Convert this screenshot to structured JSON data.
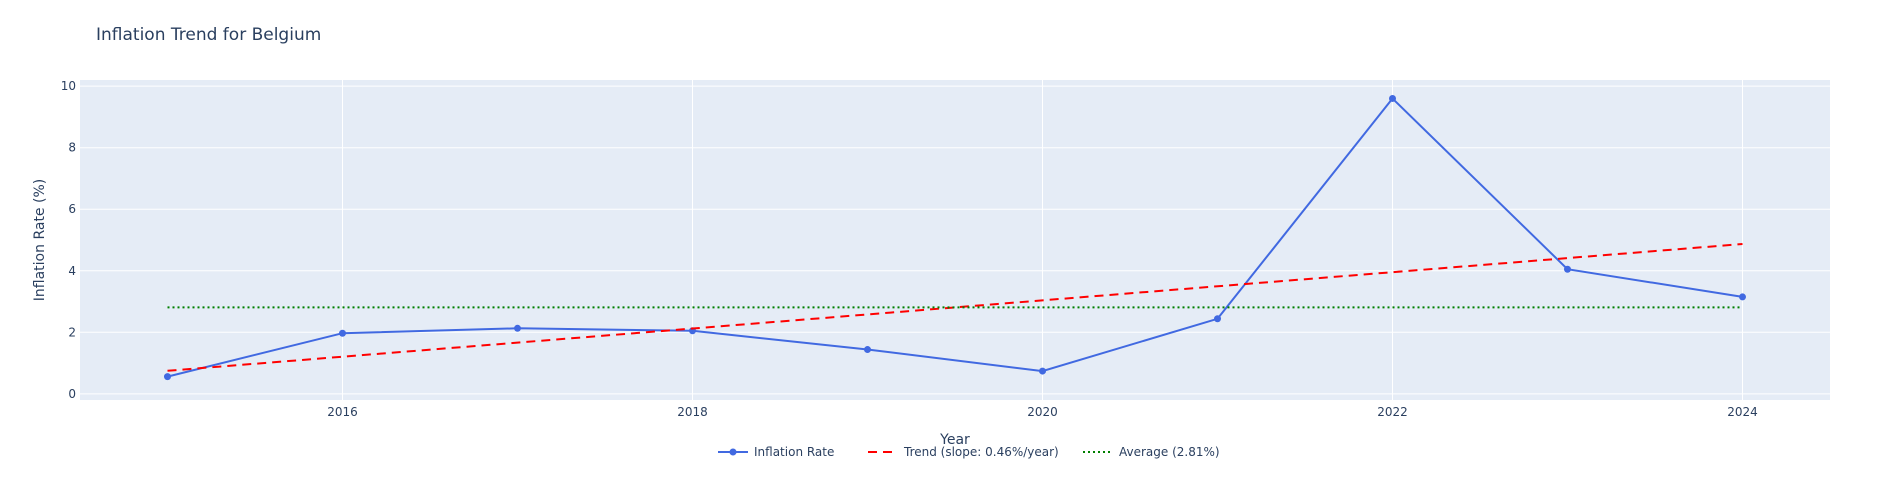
{
  "chart_data": {
    "type": "line",
    "title": "Inflation Trend for Belgium",
    "xlabel": "Year",
    "ylabel": "Inflation Rate (%)",
    "xlim": [
      2014.5,
      2024.5
    ],
    "ylim": [
      -0.2,
      10.2
    ],
    "xticks": [
      2016,
      2018,
      2020,
      2022,
      2024
    ],
    "yticks": [
      0,
      2,
      4,
      6,
      8,
      10
    ],
    "grid": true,
    "legend_position": "bottom-center",
    "series": [
      {
        "name": "Inflation Rate",
        "kind": "lines+markers",
        "color": "#4169e1",
        "x": [
          2015,
          2016,
          2017,
          2018,
          2019,
          2020,
          2021,
          2022,
          2023,
          2024
        ],
        "y": [
          0.56,
          1.97,
          2.13,
          2.05,
          1.44,
          0.74,
          2.44,
          9.6,
          4.05,
          3.15
        ]
      },
      {
        "name": "Trend (slope: 0.46%/year)",
        "kind": "dash",
        "color": "#ff0000",
        "x": [
          2015,
          2024
        ],
        "y": [
          0.75,
          4.87
        ]
      },
      {
        "name": "Average (2.81%)",
        "kind": "dot",
        "color": "#008000",
        "x": [
          2015,
          2024
        ],
        "y": [
          2.81,
          2.81
        ]
      }
    ]
  }
}
